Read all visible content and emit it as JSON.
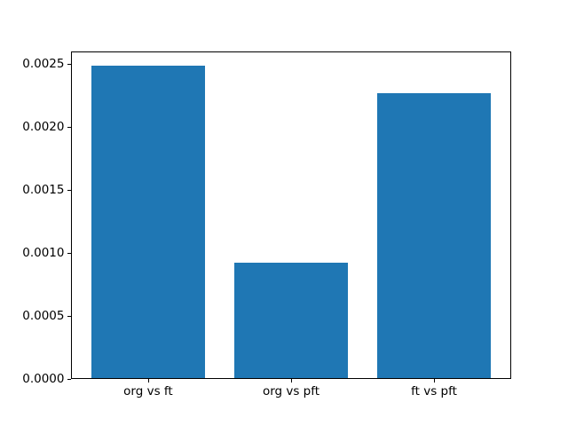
{
  "figure": {
    "background": "#ffffff",
    "spine_color": "#000000",
    "tick_text_color": "#000000"
  },
  "chart_data": {
    "type": "bar",
    "title": "",
    "xlabel": "",
    "ylabel": "",
    "categories": [
      "org vs ft",
      "org vs pft",
      "ft vs pft"
    ],
    "values": [
      0.00248,
      0.00092,
      0.00226
    ],
    "bar_color": "#1f77b4",
    "bar_width_data_units": 0.8,
    "ylim": [
      0,
      0.002604
    ],
    "ytick_values": [
      0.0,
      0.0005,
      0.001,
      0.0015,
      0.002,
      0.0025
    ],
    "ytick_labels": [
      "0.0000",
      "0.0005",
      "0.0010",
      "0.0015",
      "0.0020",
      "0.0025"
    ],
    "grid": false,
    "legend_position": "none"
  }
}
